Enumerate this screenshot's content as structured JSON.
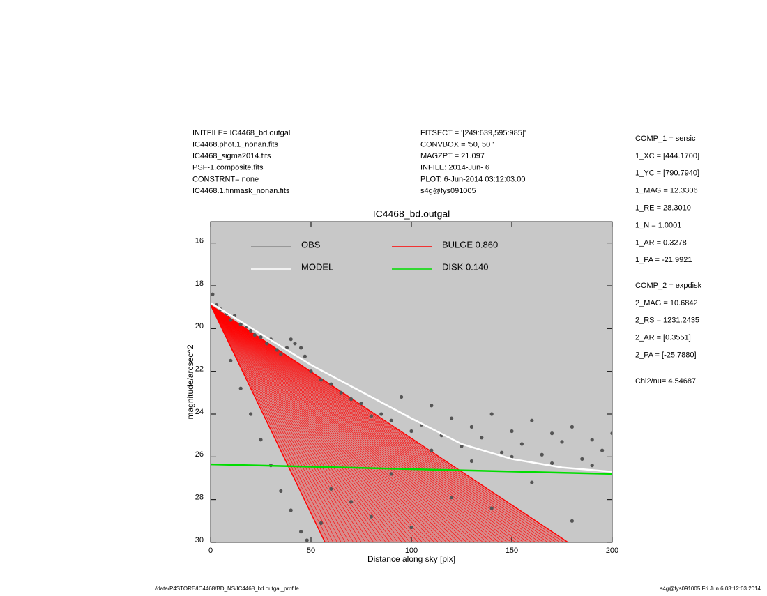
{
  "info_left": [
    "INITFILE= IC4468_bd.outgal",
    "IC4468.phot.1_nonan.fits",
    "IC4468_sigma2014.fits",
    "PSF-1.composite.fits",
    "CONSTRNT= none",
    "IC4468.1.finmask_nonan.fits"
  ],
  "info_middle": [
    "FITSECT = '[249:639,595:985]'",
    "CONVBOX = '50, 50  '",
    "MAGZPT =              21.097",
    "INFILE: 2014-Jun- 6",
    "PLOT:  6-Jun-2014 03:12:03.00",
    "s4g@fys091005"
  ],
  "info_right": [
    [
      "COMP_1  = sersic",
      "1_XC    = [444.1700]",
      "1_YC    = [790.7940]",
      "1_MAG   = 12.3306",
      "1_RE    = 28.3010",
      "1_N     = 1.0001",
      "1_AR    = 0.3278",
      "1_PA    = -21.9921"
    ],
    [
      "COMP_2  = expdisk",
      "2_MAG   = 10.6842",
      "2_RS    = 1231.2435",
      "2_AR    = [0.3551]",
      "2_PA    = [-25.7880]"
    ],
    [
      "Chi2/nu=      4.54687"
    ]
  ],
  "footer_left": "/data/P4STORE/IC4468/BD_NS/IC4468_bd.outgal_profile",
  "footer_right": "s4g@fys091005  Fri Jun  6 03:12:03 2014",
  "chart_data": {
    "type": "scatter",
    "title": "IC4468_bd.outgal",
    "xlabel": "Distance along sky [pix]",
    "ylabel": "magnitude/arcsec^2",
    "xlim": [
      0,
      200
    ],
    "xticks": [
      0,
      50,
      100,
      150,
      200
    ],
    "ylim": [
      30,
      15
    ],
    "yticks": [
      16,
      18,
      20,
      22,
      24,
      26,
      28,
      30
    ],
    "background": "#c8c8c8",
    "series": [
      {
        "name": "OBS",
        "color": "#555555",
        "legend_color": "#999999",
        "kind": "points",
        "x": [
          1,
          3,
          5,
          8,
          10,
          12,
          15,
          18,
          20,
          22,
          25,
          28,
          30,
          33,
          35,
          38,
          40,
          42,
          45,
          47,
          50,
          10,
          15,
          20,
          25,
          30,
          35,
          40,
          45,
          48,
          55,
          60,
          65,
          70,
          75,
          80,
          85,
          90,
          95,
          100,
          105,
          110,
          115,
          120,
          125,
          130,
          135,
          140,
          145,
          150,
          155,
          160,
          165,
          170,
          175,
          180,
          185,
          190,
          195,
          200,
          60,
          80,
          100,
          120,
          140,
          160,
          180,
          130,
          150,
          170,
          190,
          110,
          90,
          70,
          55
        ],
        "values": [
          18.4,
          18.9,
          19.1,
          19.3,
          19.6,
          19.4,
          19.8,
          19.9,
          20.1,
          20.3,
          20.4,
          20.7,
          20.5,
          21.0,
          21.2,
          20.9,
          20.5,
          20.7,
          20.9,
          21.3,
          22.0,
          21.5,
          22.8,
          24.0,
          25.2,
          26.4,
          27.6,
          28.5,
          29.5,
          29.9,
          22.4,
          22.6,
          23.0,
          23.3,
          23.5,
          24.1,
          24.0,
          24.3,
          23.2,
          24.8,
          24.5,
          23.6,
          25.0,
          24.2,
          25.5,
          24.6,
          25.1,
          24.0,
          25.8,
          24.8,
          25.4,
          24.3,
          25.9,
          24.9,
          25.3,
          24.6,
          26.1,
          25.2,
          25.7,
          24.9,
          27.5,
          28.8,
          29.3,
          27.9,
          28.4,
          27.2,
          29.0,
          26.2,
          26.0,
          26.3,
          26.4,
          25.7,
          26.8,
          28.1,
          29.1
        ]
      },
      {
        "name": "MODEL",
        "color": "#ffffff",
        "legend_color": "#ffffff",
        "kind": "line",
        "x": [
          0,
          50,
          100,
          125,
          150,
          175,
          200
        ],
        "values": [
          18.8,
          21.7,
          24.2,
          25.4,
          26.1,
          26.5,
          26.7
        ]
      },
      {
        "name": "BULGE  0.860",
        "color": "#ff0000",
        "legend_color": "#ff0000",
        "kind": "fan",
        "x": [
          0,
          178
        ],
        "values": [
          18.9,
          30
        ],
        "x_steep": [
          0,
          57
        ],
        "values_steep": [
          18.9,
          30
        ]
      },
      {
        "name": "DISK  0.140",
        "color": "#00dd00",
        "legend_color": "#00ee00",
        "kind": "line",
        "x": [
          0,
          200
        ],
        "values": [
          26.35,
          26.8
        ]
      }
    ]
  }
}
